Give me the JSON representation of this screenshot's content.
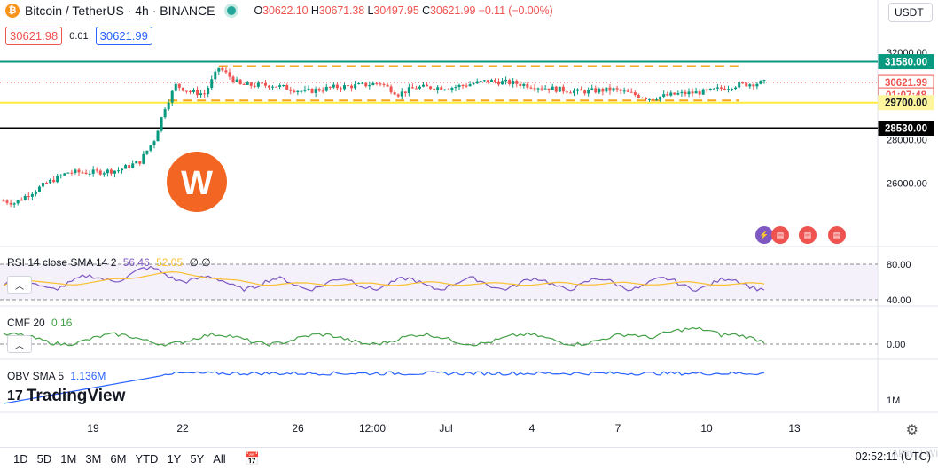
{
  "header": {
    "symbol": "Bitcoin / TetherUS · 4h · BINANCE",
    "ohlc": [
      {
        "k": "O",
        "v": "30622.10"
      },
      {
        "k": "H",
        "v": "30671.38"
      },
      {
        "k": "L",
        "v": "30497.95"
      },
      {
        "k": "C",
        "v": "30621.99"
      }
    ],
    "change": "−0.11 (−0.00%)",
    "sell_price": "30621.98",
    "spread": "0.01",
    "buy_price": "30621.99",
    "currency": "USDT"
  },
  "indicators": {
    "rsi": {
      "label": "RSI 14 close SMA 14 2",
      "value": "56.46",
      "value2": "52.05",
      "extra": "∅ ∅"
    },
    "cmf": {
      "label": "CMF 20",
      "value": "0.16"
    },
    "obv": {
      "label": "OBV SMA 5",
      "value": "1.136M"
    }
  },
  "price_labels": [
    {
      "text": "31580.00",
      "bg": "#089981",
      "fg": "#ffffff"
    },
    {
      "text": "30621.99",
      "bg": "#ffffff",
      "fg": "#ef5350",
      "border": "#ef5350"
    },
    {
      "text": "01:07:48",
      "bg": "#ffffff",
      "fg": "#ef5350",
      "border": "#ef5350"
    },
    {
      "text": "29700.00",
      "bg": "#fff59d",
      "fg": "#131722"
    },
    {
      "text": "28530.00",
      "bg": "#000000",
      "fg": "#ffffff"
    }
  ],
  "logo_text": "TradingView",
  "timeframes": [
    "1D",
    "5D",
    "1M",
    "3M",
    "6M",
    "YTD",
    "1Y",
    "5Y",
    "All"
  ],
  "clock": "02:52:11 (UTC)",
  "watermark": "Aktiviu Wi",
  "colors": {
    "up": "#089981",
    "down": "#ef5350",
    "support": "#ffeb3b",
    "resistance": "#089981",
    "range": "#f5a623",
    "rsi": "#7e57c2",
    "rsi_sma": "#fbc02d",
    "cmf": "#43a047",
    "obv": "#2962ff"
  },
  "chart_data": {
    "type": "line",
    "price_axis": {
      "ticks": [
        32000,
        28000,
        26000
      ],
      "tick_labels": [
        "32000.00",
        "28000.00",
        "26000.00"
      ]
    },
    "time_axis": [
      "19",
      "22",
      "26",
      "12:00",
      "Jul",
      "4",
      "7",
      "10",
      "13"
    ],
    "horizontal_levels": {
      "resistance": 31580,
      "support": 29700,
      "low_line": 28530,
      "last_price": 30621.99
    },
    "range_box": {
      "top": 31380,
      "bottom": 29800
    },
    "price_path": [
      [
        0,
        25200
      ],
      [
        3,
        25100
      ],
      [
        7,
        25500
      ],
      [
        12,
        26000
      ],
      [
        18,
        26500
      ],
      [
        25,
        26500
      ],
      [
        32,
        26600
      ],
      [
        38,
        27000
      ],
      [
        42,
        28000
      ],
      [
        45,
        29500
      ],
      [
        48,
        30500
      ],
      [
        52,
        30200
      ],
      [
        56,
        30100
      ],
      [
        60,
        31300
      ],
      [
        66,
        30500
      ],
      [
        75,
        30500
      ],
      [
        84,
        30200
      ],
      [
        92,
        30400
      ],
      [
        100,
        30500
      ],
      [
        105,
        30600
      ],
      [
        110,
        30100
      ],
      [
        115,
        30400
      ],
      [
        125,
        30400
      ],
      [
        135,
        30700
      ],
      [
        142,
        30600
      ],
      [
        150,
        30400
      ],
      [
        160,
        30200
      ],
      [
        170,
        30300
      ],
      [
        180,
        29900
      ],
      [
        188,
        30100
      ],
      [
        196,
        30200
      ],
      [
        204,
        30500
      ],
      [
        212,
        30622
      ]
    ],
    "rsi_axis": [
      80,
      40
    ],
    "cmf_axis": [
      0
    ],
    "obv_axis": [
      "1M"
    ]
  }
}
